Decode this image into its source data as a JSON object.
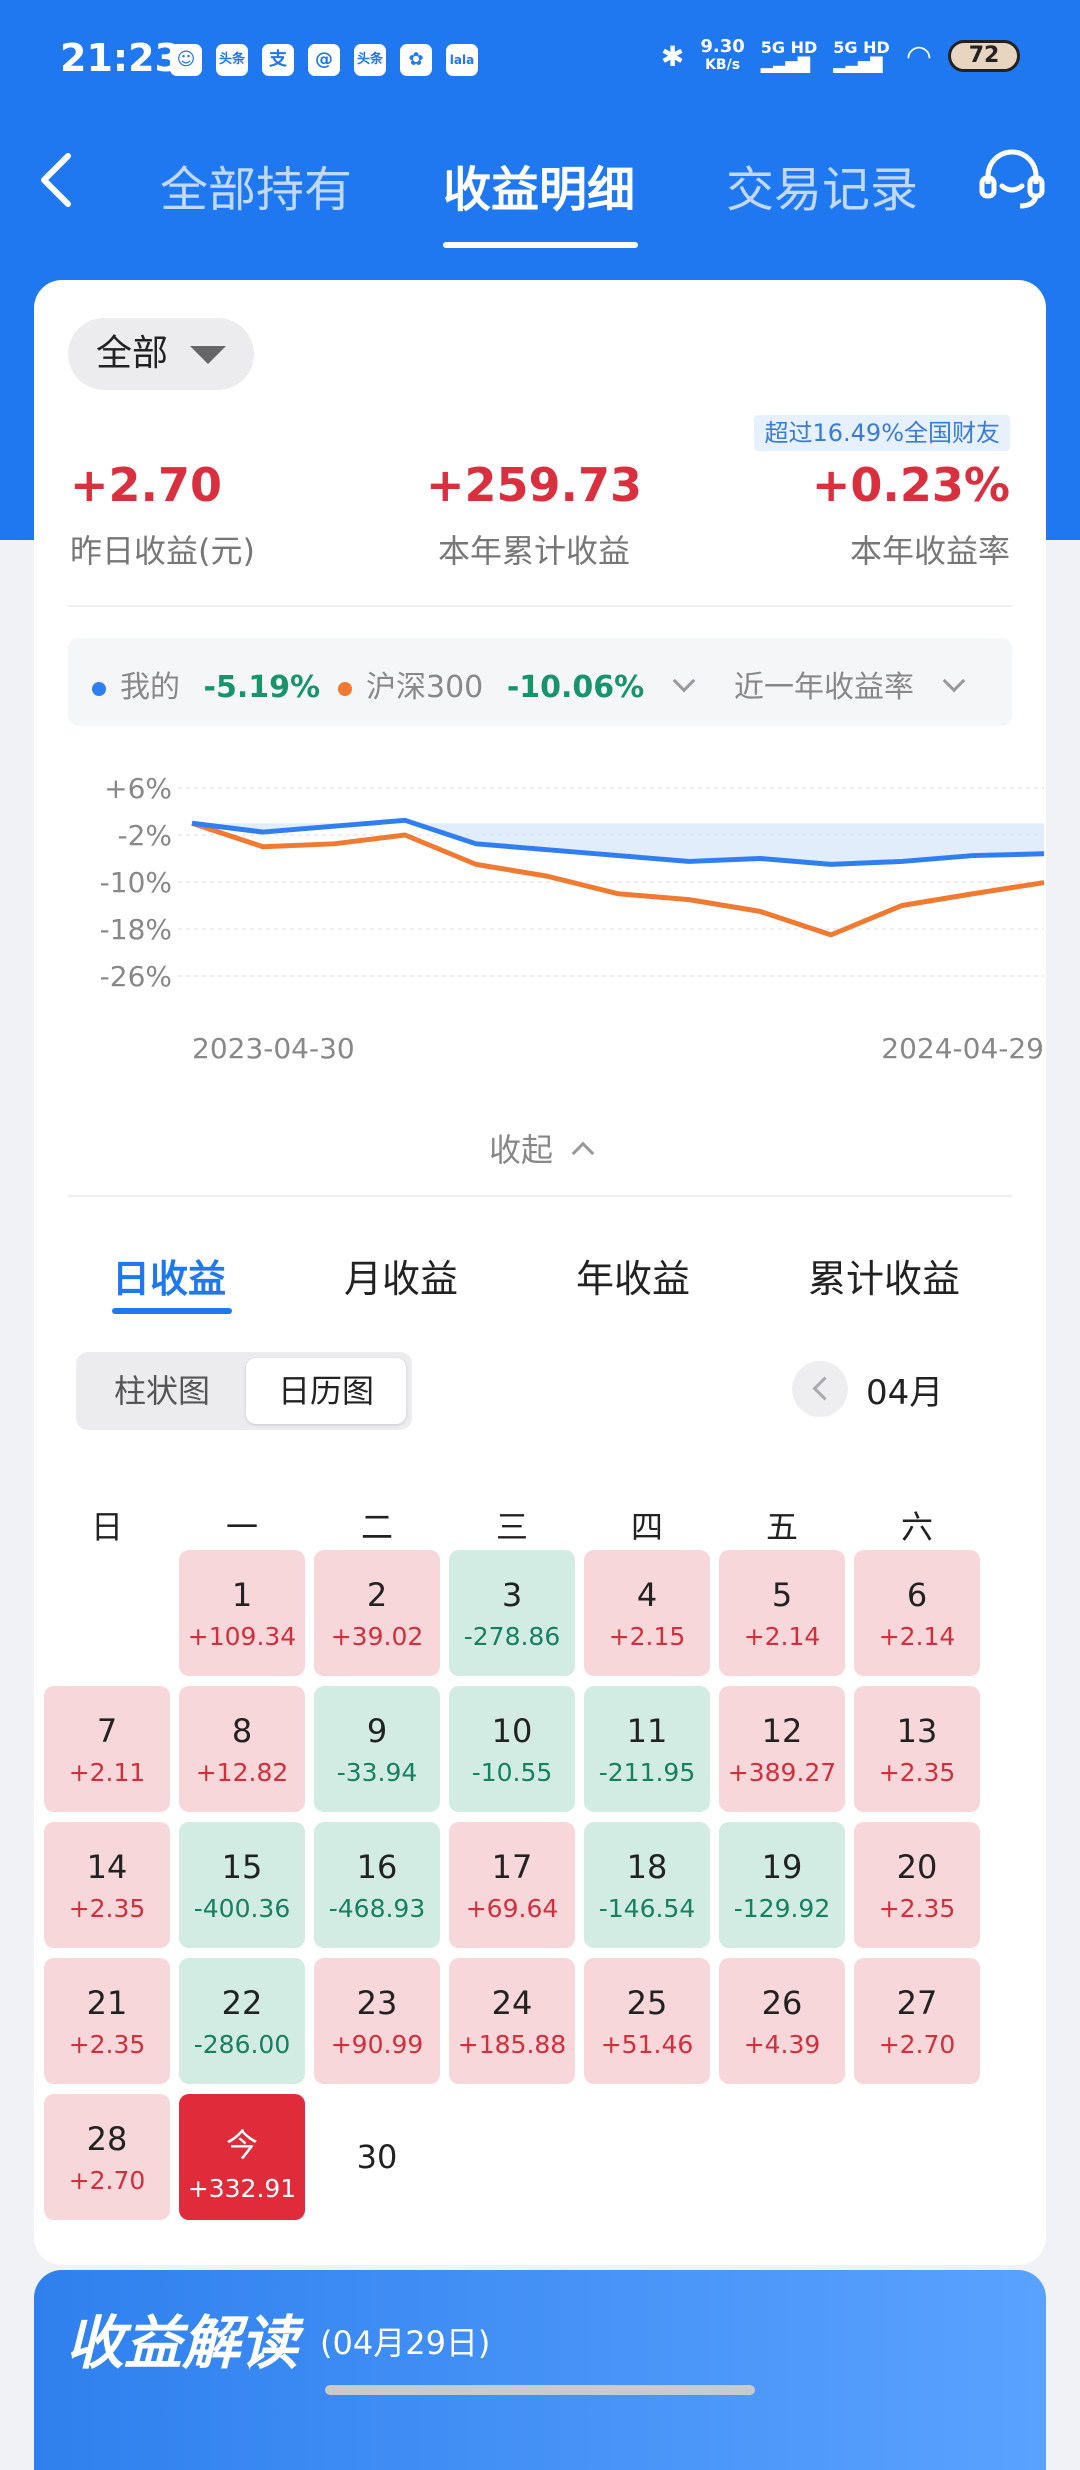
{
  "status_bar": {
    "time": "21:23",
    "app_icons": [
      "头条",
      "支",
      "头条",
      "✿",
      "lala"
    ],
    "net_speed_value": "9.30",
    "net_speed_unit": "KB/s",
    "signal1": "5G HD",
    "signal2": "5G HD",
    "battery": "72"
  },
  "nav": {
    "tabs": [
      "全部持有",
      "收益明细",
      "交易记录"
    ],
    "active_tab": "收益明细"
  },
  "summary": {
    "filter_label": "全部",
    "rank_badge": "超过16.49%全国财友",
    "stats": [
      {
        "value": "+2.70",
        "label": "昨日收益(元)"
      },
      {
        "value": "+259.73",
        "label": "本年累计收益"
      },
      {
        "value": "+0.23%",
        "label": "本年收益率"
      }
    ]
  },
  "legend": {
    "mine_label": "我的",
    "mine_value": "-5.19%",
    "bench_label": "沪深300",
    "bench_value": "-10.06%",
    "period_label": "近一年收益率"
  },
  "chart_data": {
    "type": "line",
    "y_ticks": [
      "+6%",
      "-2%",
      "-10%",
      "-18%",
      "-26%"
    ],
    "ylim": [
      -26,
      6
    ],
    "x_start_label": "2023-04-30",
    "x_end_label": "2024-04-29",
    "x": [
      "2023-04-30",
      "2023-05-31",
      "2023-06-30",
      "2023-07-31",
      "2023-08-31",
      "2023-09-30",
      "2023-10-31",
      "2023-11-30",
      "2023-12-31",
      "2024-01-31",
      "2024-02-29",
      "2024-03-31",
      "2024-04-29"
    ],
    "series": [
      {
        "name": "我的",
        "color": "#2f7ff0",
        "values": [
          0.0,
          -1.5,
          -0.5,
          0.5,
          -3.5,
          -4.5,
          -5.5,
          -6.5,
          -6.0,
          -7.0,
          -6.5,
          -5.5,
          -5.2
        ]
      },
      {
        "name": "沪深300",
        "color": "#f07a31",
        "values": [
          0.0,
          -4.0,
          -3.5,
          -2.0,
          -7.0,
          -9.0,
          -12.0,
          -13.0,
          -15.0,
          -19.0,
          -14.0,
          -12.0,
          -10.1
        ]
      }
    ],
    "legend_position": "top",
    "grid": true
  },
  "collapse_label": "收起",
  "returns_tabs": [
    "日收益",
    "月收益",
    "年收益",
    "累计收益"
  ],
  "view_toggle": [
    "柱状图",
    "日历图"
  ],
  "selected_view": "日历图",
  "month_label": "04月",
  "weekdays": [
    "日",
    "一",
    "二",
    "三",
    "四",
    "五",
    "六"
  ],
  "calendar": [
    {
      "day": "1",
      "value": "+109.34",
      "dir": "up"
    },
    {
      "day": "2",
      "value": "+39.02",
      "dir": "up"
    },
    {
      "day": "3",
      "value": "-278.86",
      "dir": "down"
    },
    {
      "day": "4",
      "value": "+2.15",
      "dir": "up"
    },
    {
      "day": "5",
      "value": "+2.14",
      "dir": "up"
    },
    {
      "day": "6",
      "value": "+2.14",
      "dir": "up"
    },
    {
      "day": "7",
      "value": "+2.11",
      "dir": "up"
    },
    {
      "day": "8",
      "value": "+12.82",
      "dir": "up"
    },
    {
      "day": "9",
      "value": "-33.94",
      "dir": "down"
    },
    {
      "day": "10",
      "value": "-10.55",
      "dir": "down"
    },
    {
      "day": "11",
      "value": "-211.95",
      "dir": "down"
    },
    {
      "day": "12",
      "value": "+389.27",
      "dir": "up"
    },
    {
      "day": "13",
      "value": "+2.35",
      "dir": "up"
    },
    {
      "day": "14",
      "value": "+2.35",
      "dir": "up"
    },
    {
      "day": "15",
      "value": "-400.36",
      "dir": "down"
    },
    {
      "day": "16",
      "value": "-468.93",
      "dir": "down"
    },
    {
      "day": "17",
      "value": "+69.64",
      "dir": "up"
    },
    {
      "day": "18",
      "value": "-146.54",
      "dir": "down"
    },
    {
      "day": "19",
      "value": "-129.92",
      "dir": "down"
    },
    {
      "day": "20",
      "value": "+2.35",
      "dir": "up"
    },
    {
      "day": "21",
      "value": "+2.35",
      "dir": "up"
    },
    {
      "day": "22",
      "value": "-286.00",
      "dir": "down"
    },
    {
      "day": "23",
      "value": "+90.99",
      "dir": "up"
    },
    {
      "day": "24",
      "value": "+185.88",
      "dir": "up"
    },
    {
      "day": "25",
      "value": "+51.46",
      "dir": "up"
    },
    {
      "day": "26",
      "value": "+4.39",
      "dir": "up"
    },
    {
      "day": "27",
      "value": "+2.70",
      "dir": "up"
    },
    {
      "day": "28",
      "value": "+2.70",
      "dir": "up"
    },
    {
      "day": "今",
      "value": "+332.91",
      "dir": "today"
    },
    {
      "day": "30",
      "value": "",
      "dir": "empty"
    }
  ],
  "interpretation": {
    "title": "收益解读",
    "date": "(04月29日)"
  },
  "colors": {
    "brand": "#1f78f0",
    "up": "#d92f3e",
    "down": "#17946a"
  }
}
